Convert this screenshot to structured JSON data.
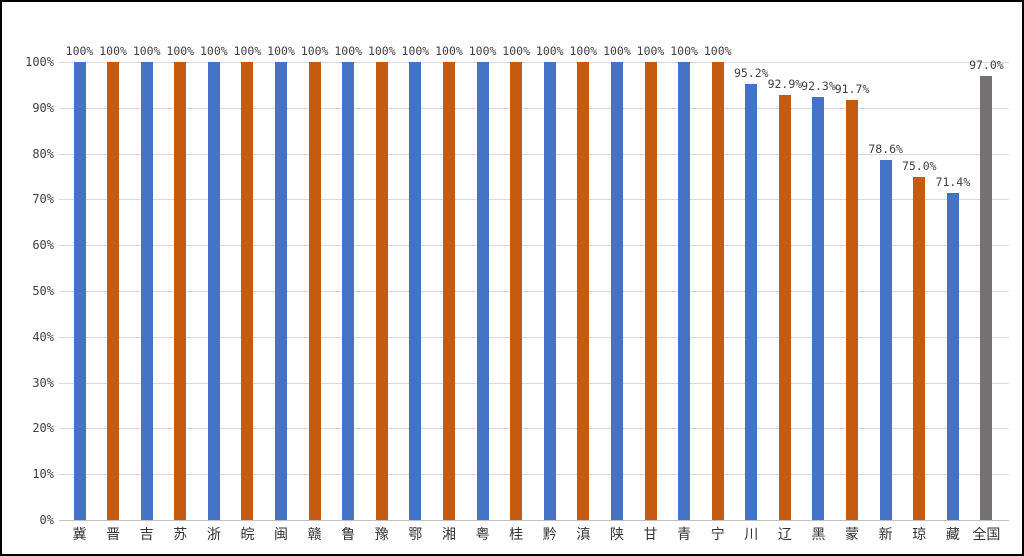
{
  "chart_data": {
    "type": "bar",
    "title": "",
    "xlabel": "",
    "ylabel": "",
    "legend": "none",
    "grid": true,
    "ylim": [
      0,
      100
    ],
    "y_ticks": [
      "0%",
      "10%",
      "20%",
      "30%",
      "40%",
      "50%",
      "60%",
      "70%",
      "80%",
      "90%",
      "100%"
    ],
    "y_tick_values": [
      0,
      10,
      20,
      30,
      40,
      50,
      60,
      70,
      80,
      90,
      100
    ],
    "categories": [
      "冀",
      "晋",
      "吉",
      "苏",
      "浙",
      "皖",
      "闽",
      "赣",
      "鲁",
      "豫",
      "鄂",
      "湘",
      "粤",
      "桂",
      "黔",
      "滇",
      "陕",
      "甘",
      "青",
      "宁",
      "川",
      "辽",
      "黑",
      "蒙",
      "新",
      "琼",
      "藏",
      "全国"
    ],
    "values": [
      100,
      100,
      100,
      100,
      100,
      100,
      100,
      100,
      100,
      100,
      100,
      100,
      100,
      100,
      100,
      100,
      100,
      100,
      100,
      100,
      95.2,
      92.9,
      92.3,
      91.7,
      78.6,
      75.0,
      71.4,
      97.0
    ],
    "data_labels": [
      "100%",
      "100%",
      "100%",
      "100%",
      "100%",
      "100%",
      "100%",
      "100%",
      "100%",
      "100%",
      "100%",
      "100%",
      "100%",
      "100%",
      "100%",
      "100%",
      "100%",
      "100%",
      "100%",
      "100%",
      "95.2%",
      "92.9%",
      "92.3%",
      "91.7%",
      "78.6%",
      "75.0%",
      "71.4%",
      "97.0%"
    ],
    "bar_colors": [
      "blue",
      "orange",
      "blue",
      "orange",
      "blue",
      "orange",
      "blue",
      "orange",
      "blue",
      "orange",
      "blue",
      "orange",
      "blue",
      "orange",
      "blue",
      "orange",
      "blue",
      "orange",
      "blue",
      "orange",
      "blue",
      "orange",
      "blue",
      "orange",
      "blue",
      "orange",
      "blue",
      "gray"
    ],
    "palette": {
      "blue": "#4472C4",
      "orange": "#C55A11",
      "gray": "#767171"
    },
    "gridline_color": "#D9D9D9",
    "axis_line_color": "#BFBFBF",
    "label_text_color": "#3F3F3F"
  }
}
